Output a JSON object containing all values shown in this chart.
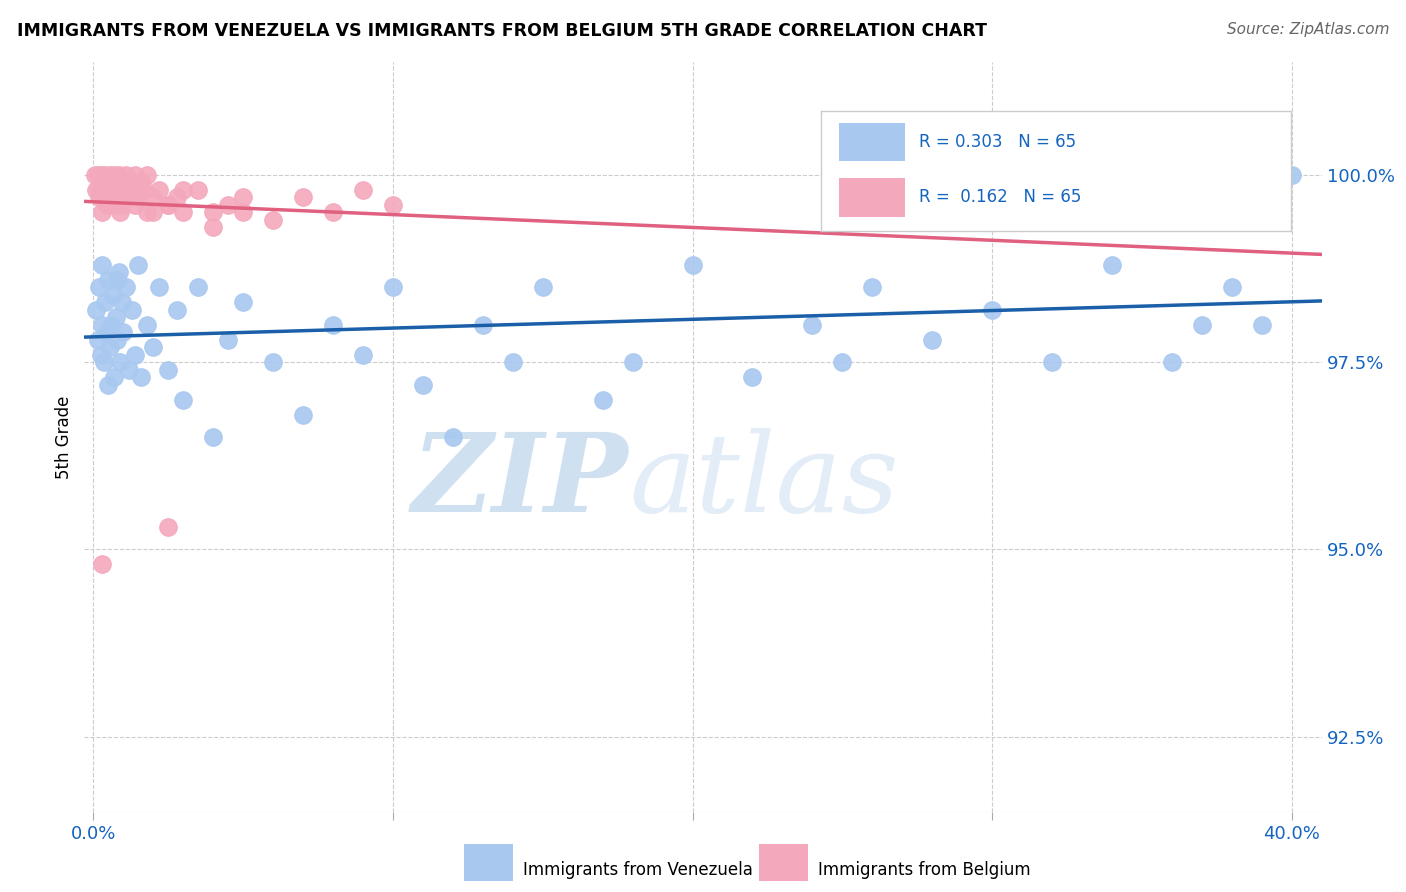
{
  "title": "IMMIGRANTS FROM VENEZUELA VS IMMIGRANTS FROM BELGIUM 5TH GRADE CORRELATION CHART",
  "source": "Source: ZipAtlas.com",
  "ylabel": "5th Grade",
  "ytick_vals": [
    92.5,
    95.0,
    97.5,
    100.0
  ],
  "ymin": 91.5,
  "ymax": 101.5,
  "xmin": -0.3,
  "xmax": 41.0,
  "r_venezuela": 0.303,
  "n_venezuela": 65,
  "r_belgium": 0.162,
  "n_belgium": 65,
  "color_venezuela": "#A8C8F0",
  "color_belgium": "#F4A8BC",
  "trendline_venezuela": "#1A5FA8",
  "trendline_belgium": "#E06080",
  "legend_label_venezuela": "Immigrants from Venezuela",
  "legend_label_belgium": "Immigrants from Belgium",
  "watermark_zip": "ZIP",
  "watermark_atlas": "atlas",
  "watermark_color": "#C8DCF0",
  "venezuela_x": [
    0.1,
    0.15,
    0.2,
    0.25,
    0.3,
    0.35,
    0.4,
    0.45,
    0.5,
    0.55,
    0.6,
    0.65,
    0.7,
    0.75,
    0.8,
    0.85,
    0.9,
    0.95,
    1.0,
    1.1,
    1.2,
    1.3,
    1.4,
    1.5,
    1.6,
    1.8,
    2.0,
    2.2,
    2.5,
    2.8,
    3.0,
    3.5,
    4.0,
    4.5,
    5.0,
    6.0,
    7.0,
    8.0,
    9.0,
    10.0,
    11.0,
    12.0,
    13.0,
    14.0,
    15.0,
    17.0,
    18.0,
    20.0,
    22.0,
    24.0,
    25.0,
    26.0,
    28.0,
    30.0,
    32.0,
    34.0,
    36.0,
    37.0,
    38.0,
    39.0,
    39.5,
    40.0,
    0.3,
    0.5,
    0.8
  ],
  "venezuela_y": [
    98.2,
    97.8,
    98.5,
    97.6,
    98.8,
    97.5,
    98.3,
    97.9,
    98.6,
    97.7,
    98.0,
    98.4,
    97.3,
    98.1,
    97.8,
    98.7,
    97.5,
    98.3,
    97.9,
    98.5,
    97.4,
    98.2,
    97.6,
    98.8,
    97.3,
    98.0,
    97.7,
    98.5,
    97.4,
    98.2,
    97.0,
    98.5,
    96.5,
    97.8,
    98.3,
    97.5,
    96.8,
    98.0,
    97.6,
    98.5,
    97.2,
    96.5,
    98.0,
    97.5,
    98.5,
    97.0,
    97.5,
    98.8,
    97.3,
    98.0,
    97.5,
    98.5,
    97.8,
    98.2,
    97.5,
    98.8,
    97.5,
    98.0,
    98.5,
    98.0,
    99.8,
    100.0,
    98.0,
    97.2,
    98.6
  ],
  "belgium_x": [
    0.05,
    0.1,
    0.15,
    0.2,
    0.25,
    0.3,
    0.35,
    0.4,
    0.45,
    0.5,
    0.55,
    0.6,
    0.65,
    0.7,
    0.75,
    0.8,
    0.85,
    0.9,
    0.95,
    1.0,
    1.05,
    1.1,
    1.15,
    1.2,
    1.3,
    1.4,
    1.5,
    1.6,
    1.7,
    1.8,
    2.0,
    2.2,
    2.5,
    2.8,
    3.0,
    3.5,
    4.0,
    4.5,
    5.0,
    6.0,
    7.0,
    8.0,
    9.0,
    10.0,
    0.2,
    0.3,
    0.5,
    0.6,
    0.7,
    0.8,
    0.9,
    1.0,
    1.2,
    1.4,
    1.6,
    1.8,
    2.0,
    2.5,
    3.0,
    4.0,
    5.0,
    0.4,
    0.6,
    2.5,
    0.3
  ],
  "belgium_y": [
    100.0,
    99.8,
    100.0,
    99.7,
    100.0,
    99.9,
    99.8,
    100.0,
    99.6,
    99.9,
    100.0,
    99.8,
    99.9,
    100.0,
    99.7,
    99.9,
    100.0,
    99.8,
    99.6,
    99.9,
    99.8,
    100.0,
    99.7,
    99.9,
    99.8,
    100.0,
    99.7,
    99.9,
    99.8,
    100.0,
    99.5,
    99.8,
    99.6,
    99.7,
    99.5,
    99.8,
    99.3,
    99.6,
    99.5,
    99.4,
    99.7,
    99.5,
    99.8,
    99.6,
    99.8,
    99.5,
    99.7,
    99.9,
    99.6,
    99.8,
    99.5,
    99.7,
    99.9,
    99.6,
    99.8,
    99.5,
    99.7,
    99.6,
    99.8,
    99.5,
    99.7,
    99.9,
    99.7,
    95.3,
    94.8
  ]
}
